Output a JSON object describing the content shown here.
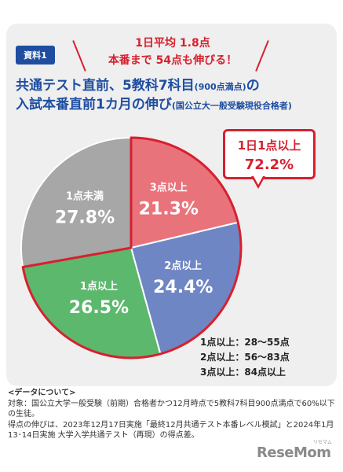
{
  "tag": "資料1",
  "callout": {
    "line1": "1日平均 1.8点",
    "line2": "本番まで 54点も伸びる！"
  },
  "title": {
    "line1_main": "共通テスト直前、5教科7科目",
    "line1_small": "(900点満点)",
    "line1_end": "の",
    "line2_main": "入試本番直前1カ月の伸び",
    "line2_small": "(国公立大一般受験現役合格者)"
  },
  "badge": {
    "line1": "1日1点以上",
    "line2": "72.2%"
  },
  "legend": [
    "1点以上：28〜55点",
    "2点以上：56〜83点",
    "3点以上：84点以上"
  ],
  "notes": {
    "heading": "<データについて>",
    "line1": "対象：国公立大学一般受験（前期）合格者かつ12月時点で5教科7科目900点満点で60%以下の生徒。",
    "line2": "得点の伸びは、2023年12月17日実施「最終12月共通テスト本番レベル模試」と2024年1月13･14日実施 大学入学共通テスト（再現）の得点差。"
  },
  "logo": {
    "text": "ReseMom",
    "sub": "リセマム"
  },
  "chart_data": {
    "type": "pie",
    "categories": [
      "3点以上",
      "2点以上",
      "1点以上",
      "1点未満"
    ],
    "values": [
      21.3,
      24.4,
      26.5,
      27.8
    ],
    "value_labels": [
      "21.3%",
      "24.4%",
      "26.5%",
      "27.8%"
    ],
    "colors": [
      "#e9737b",
      "#6f86c4",
      "#5cb86c",
      "#a7a7a7"
    ],
    "start_angle_deg": 0,
    "direction": "clockwise",
    "highlight": {
      "slices": [
        "3点以上",
        "2点以上",
        "1点以上"
      ],
      "total_label": "72.2%",
      "outline_color": "#d7202f"
    }
  }
}
